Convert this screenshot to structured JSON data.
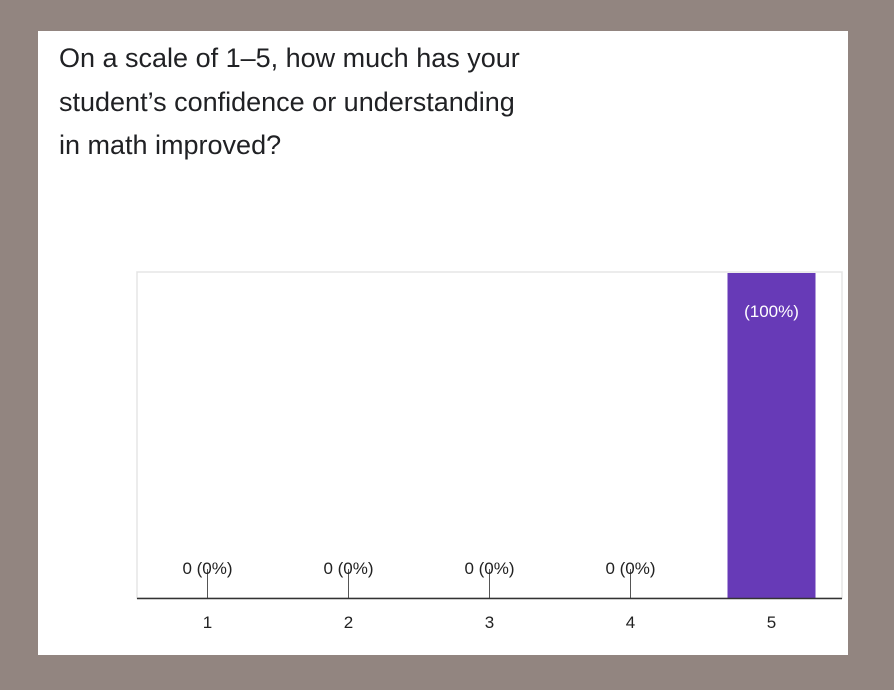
{
  "question": {
    "line1": "On a scale of 1–5, how much has your",
    "line2": "student’s confidence or understanding",
    "line3": "in math improved?"
  },
  "chart_data": {
    "type": "bar",
    "title": "",
    "xlabel": "",
    "ylabel": "",
    "categories": [
      "1",
      "2",
      "3",
      "4",
      "5"
    ],
    "values": [
      0,
      0,
      0,
      0,
      100
    ],
    "data_labels": [
      "0 (0%)",
      "0 (0%)",
      "0 (0%)",
      "0 (0%)",
      "(100%)"
    ],
    "value_unit": "percent of responses",
    "ylim": [
      0,
      100
    ],
    "grid": false,
    "legend": "none",
    "colors": {
      "bar": "#673ab7",
      "axis": "#333333",
      "frame": "#e5e5e5",
      "label_dark": "#222222",
      "label_light": "#ffffff"
    }
  }
}
